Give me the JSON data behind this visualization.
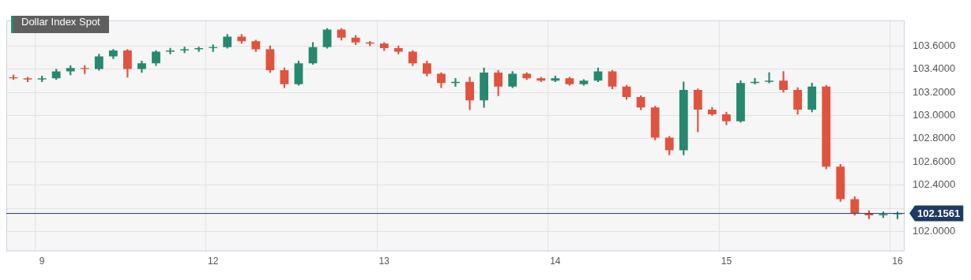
{
  "chart_data": {
    "type": "candlestick",
    "title": "Dollar Index Spot",
    "categories": [
      null,
      null,
      "9",
      null,
      null,
      null,
      null,
      null,
      null,
      null,
      null,
      null,
      null,
      null,
      "12",
      null,
      null,
      null,
      null,
      null,
      null,
      null,
      null,
      null,
      null,
      null,
      "13",
      null,
      null,
      null,
      null,
      null,
      null,
      null,
      null,
      null,
      null,
      null,
      "14",
      null,
      null,
      null,
      null,
      null,
      null,
      null,
      null,
      null,
      null,
      null,
      "15",
      null,
      null,
      null,
      null,
      null,
      null,
      null,
      null,
      null,
      null,
      null,
      "16"
    ],
    "ohlc": [
      [
        103.33,
        103.35,
        103.31,
        103.32
      ],
      [
        103.32,
        103.33,
        103.29,
        103.31
      ],
      [
        103.31,
        103.34,
        103.29,
        103.32
      ],
      [
        103.32,
        103.4,
        103.31,
        103.38
      ],
      [
        103.38,
        103.43,
        103.35,
        103.41
      ],
      [
        103.41,
        103.43,
        103.36,
        103.4
      ],
      [
        103.4,
        103.53,
        103.39,
        103.51
      ],
      [
        103.51,
        103.57,
        103.49,
        103.56
      ],
      [
        103.56,
        103.57,
        103.33,
        103.4
      ],
      [
        103.4,
        103.47,
        103.37,
        103.45
      ],
      [
        103.45,
        103.56,
        103.43,
        103.55
      ],
      [
        103.55,
        103.58,
        103.53,
        103.56
      ],
      [
        103.56,
        103.59,
        103.54,
        103.57
      ],
      [
        103.57,
        103.59,
        103.55,
        103.58
      ],
      [
        103.58,
        103.61,
        103.55,
        103.59
      ],
      [
        103.59,
        103.7,
        103.58,
        103.68
      ],
      [
        103.68,
        103.7,
        103.62,
        103.64
      ],
      [
        103.64,
        103.65,
        103.55,
        103.57
      ],
      [
        103.57,
        103.6,
        103.37,
        103.39
      ],
      [
        103.39,
        103.41,
        103.24,
        103.27
      ],
      [
        103.27,
        103.47,
        103.26,
        103.45
      ],
      [
        103.45,
        103.63,
        103.44,
        103.59
      ],
      [
        103.59,
        103.75,
        103.58,
        103.74
      ],
      [
        103.74,
        103.75,
        103.65,
        103.67
      ],
      [
        103.67,
        103.69,
        103.61,
        103.63
      ],
      [
        103.63,
        103.64,
        103.6,
        103.62
      ],
      [
        103.62,
        103.63,
        103.56,
        103.58
      ],
      [
        103.58,
        103.6,
        103.53,
        103.55
      ],
      [
        103.55,
        103.56,
        103.43,
        103.45
      ],
      [
        103.45,
        103.47,
        103.34,
        103.36
      ],
      [
        103.36,
        103.37,
        103.24,
        103.28
      ],
      [
        103.28,
        103.32,
        103.25,
        103.29
      ],
      [
        103.29,
        103.33,
        103.05,
        103.13
      ],
      [
        103.13,
        103.41,
        103.07,
        103.37
      ],
      [
        103.37,
        103.39,
        103.17,
        103.25
      ],
      [
        103.25,
        103.38,
        103.24,
        103.36
      ],
      [
        103.36,
        103.37,
        103.31,
        103.32
      ],
      [
        103.32,
        103.33,
        103.29,
        103.3
      ],
      [
        103.3,
        103.34,
        103.29,
        103.32
      ],
      [
        103.32,
        103.33,
        103.26,
        103.27
      ],
      [
        103.27,
        103.31,
        103.26,
        103.3
      ],
      [
        103.3,
        103.41,
        103.29,
        103.38
      ],
      [
        103.38,
        103.39,
        103.23,
        103.25
      ],
      [
        103.25,
        103.26,
        103.14,
        103.16
      ],
      [
        103.16,
        103.17,
        103.05,
        103.07
      ],
      [
        103.07,
        103.08,
        102.79,
        102.81
      ],
      [
        102.81,
        102.82,
        102.66,
        102.7
      ],
      [
        102.7,
        103.29,
        102.66,
        103.22
      ],
      [
        103.22,
        103.23,
        102.86,
        103.05
      ],
      [
        103.05,
        103.07,
        103.0,
        103.01
      ],
      [
        103.01,
        103.03,
        102.92,
        102.95
      ],
      [
        102.95,
        103.3,
        102.94,
        103.28
      ],
      [
        103.28,
        103.32,
        103.27,
        103.29
      ],
      [
        103.29,
        103.37,
        103.28,
        103.3
      ],
      [
        103.3,
        103.38,
        103.2,
        103.22
      ],
      [
        103.22,
        103.24,
        103.01,
        103.05
      ],
      [
        103.05,
        103.28,
        103.03,
        103.25
      ],
      [
        103.25,
        103.26,
        102.54,
        102.56
      ],
      [
        102.56,
        102.58,
        102.26,
        102.28
      ],
      [
        102.28,
        102.3,
        102.14,
        102.16
      ],
      [
        102.16,
        102.18,
        102.11,
        102.14
      ],
      [
        102.14,
        102.17,
        102.12,
        102.15
      ],
      [
        102.15,
        102.17,
        102.11,
        102.16
      ]
    ],
    "colors": [
      "#e0533f",
      "#e0533f",
      "#26896f",
      "#26896f",
      "#26896f",
      "#e0533f",
      "#26896f",
      "#26896f",
      "#e0533f",
      "#26896f",
      "#26896f",
      "#26896f",
      "#26896f",
      "#26896f",
      "#26896f",
      "#26896f",
      "#e0533f",
      "#e0533f",
      "#e0533f",
      "#e0533f",
      "#26896f",
      "#26896f",
      "#26896f",
      "#e0533f",
      "#e0533f",
      "#e0533f",
      "#e0533f",
      "#e0533f",
      "#e0533f",
      "#e0533f",
      "#e0533f",
      "#26896f",
      "#e0533f",
      "#26896f",
      "#e0533f",
      "#26896f",
      "#e0533f",
      "#e0533f",
      "#26896f",
      "#e0533f",
      "#26896f",
      "#26896f",
      "#e0533f",
      "#e0533f",
      "#e0533f",
      "#e0533f",
      "#e0533f",
      "#26896f",
      "#e0533f",
      "#e0533f",
      "#e0533f",
      "#26896f",
      "#26896f",
      "#26896f",
      "#e0533f",
      "#e0533f",
      "#26896f",
      "#e0533f",
      "#e0533f",
      "#e0533f",
      "#e0533f",
      "#26896f",
      "#26896f"
    ],
    "ylim": [
      101.83,
      103.82
    ],
    "yticks": [
      {
        "value": 102,
        "label": "102.0000"
      },
      {
        "value": 102.2,
        "label": null
      },
      {
        "value": 102.4,
        "label": "102.4000"
      },
      {
        "value": 102.6,
        "label": "102.6000"
      },
      {
        "value": 102.8,
        "label": "102.8000"
      },
      {
        "value": 103,
        "label": "103.0000"
      },
      {
        "value": 103.2,
        "label": "103.2000"
      },
      {
        "value": 103.4,
        "label": "103.4000"
      },
      {
        "value": 103.6,
        "label": "103.6000"
      }
    ],
    "ref_lines": [
      {
        "axis": "y",
        "value": 102.1561,
        "label": "102.1561",
        "color": "#1f3a64"
      }
    ],
    "grid": true,
    "legend": false
  }
}
